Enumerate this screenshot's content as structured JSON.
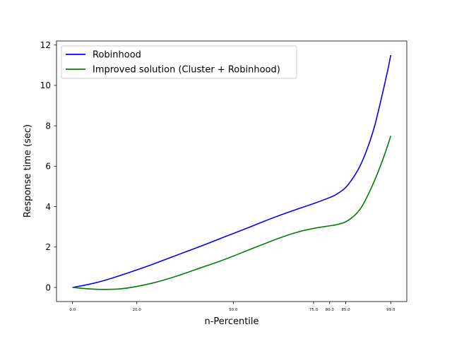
{
  "chart_data": {
    "type": "line",
    "title": "",
    "xlabel": "n-Percentile",
    "ylabel": "Response time (sec)",
    "xlim": [
      -5,
      104
    ],
    "ylim": [
      -0.7,
      12.2
    ],
    "x_ticks": [
      0.0,
      20.0,
      50.0,
      75.0,
      80.0,
      85.0,
      99.0
    ],
    "x_tick_labels": [
      "0.0",
      "20.0",
      "50.0",
      "75.0",
      "80.0",
      "85.0",
      "99.0"
    ],
    "y_ticks": [
      0,
      2,
      4,
      6,
      8,
      10,
      12
    ],
    "y_tick_labels": [
      "0",
      "2",
      "4",
      "6",
      "8",
      "10",
      "12"
    ],
    "grid": false,
    "legend_position": "upper-left",
    "series": [
      {
        "name": "Robinhood",
        "color": "#0000ff",
        "x": [
          0,
          5,
          10,
          15,
          20,
          25,
          30,
          35,
          40,
          45,
          50,
          55,
          60,
          65,
          70,
          75,
          80,
          82,
          85,
          88,
          90,
          92,
          94,
          96,
          98,
          99
        ],
        "y": [
          0.0,
          0.15,
          0.35,
          0.6,
          0.87,
          1.15,
          1.45,
          1.75,
          2.05,
          2.36,
          2.67,
          2.98,
          3.3,
          3.6,
          3.88,
          4.15,
          4.45,
          4.6,
          4.95,
          5.6,
          6.2,
          7.0,
          8.0,
          9.3,
          10.7,
          11.5
        ]
      },
      {
        "name": "Improved solution (Cluster + Robinhood)",
        "color": "#008000",
        "x": [
          0,
          5,
          10,
          15,
          20,
          25,
          30,
          35,
          40,
          45,
          50,
          55,
          60,
          65,
          70,
          75,
          80,
          82,
          85,
          88,
          90,
          92,
          94,
          96,
          98,
          99
        ],
        "y": [
          0.0,
          -0.07,
          -0.1,
          -0.07,
          0.05,
          0.22,
          0.44,
          0.7,
          0.98,
          1.25,
          1.55,
          1.87,
          2.18,
          2.48,
          2.74,
          2.92,
          3.05,
          3.1,
          3.25,
          3.6,
          4.0,
          4.6,
          5.3,
          6.1,
          7.0,
          7.5
        ]
      }
    ]
  }
}
